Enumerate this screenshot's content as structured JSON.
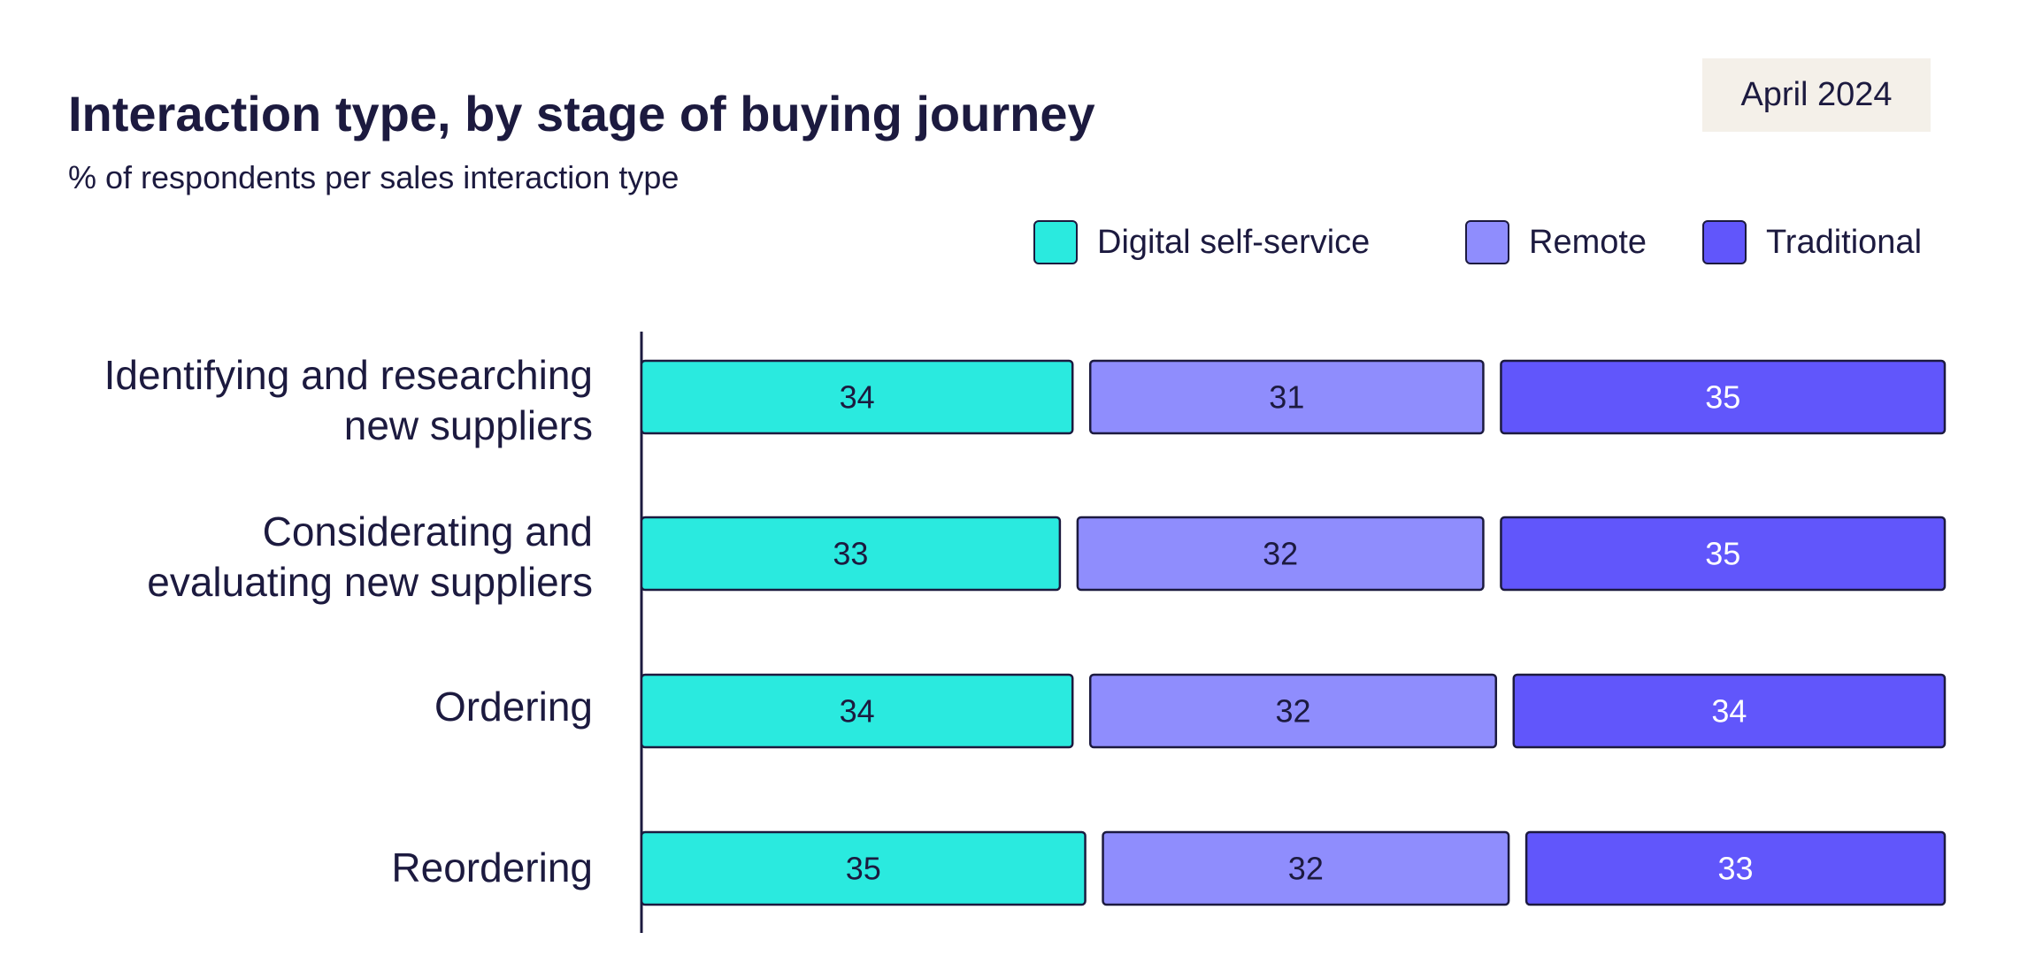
{
  "chart_data": {
    "type": "bar",
    "orientation": "horizontal",
    "stacked": true,
    "title": "Interaction type, by stage of buying journey",
    "subtitle": "% of respondents per sales interaction type",
    "date_label": "April 2024",
    "categories": [
      [
        "Identifying and researching",
        "new suppliers"
      ],
      [
        "Considerating and",
        "evaluating new suppliers"
      ],
      [
        "Ordering"
      ],
      [
        "Reordering"
      ]
    ],
    "series": [
      {
        "name": "Digital self-service",
        "color": "#2aeadf",
        "label_color": "#1c1a3f",
        "values": [
          34,
          33,
          34,
          35
        ]
      },
      {
        "name": "Remote",
        "color": "#8f8dfd",
        "label_color": "#1c1a3f",
        "values": [
          31,
          32,
          32,
          32
        ]
      },
      {
        "name": "Traditional",
        "color": "#6156fb",
        "label_color": "#ffffff",
        "values": [
          35,
          35,
          34,
          33
        ]
      }
    ],
    "xlim": [
      0,
      100
    ],
    "legend_position": "top-right",
    "grid": false
  }
}
